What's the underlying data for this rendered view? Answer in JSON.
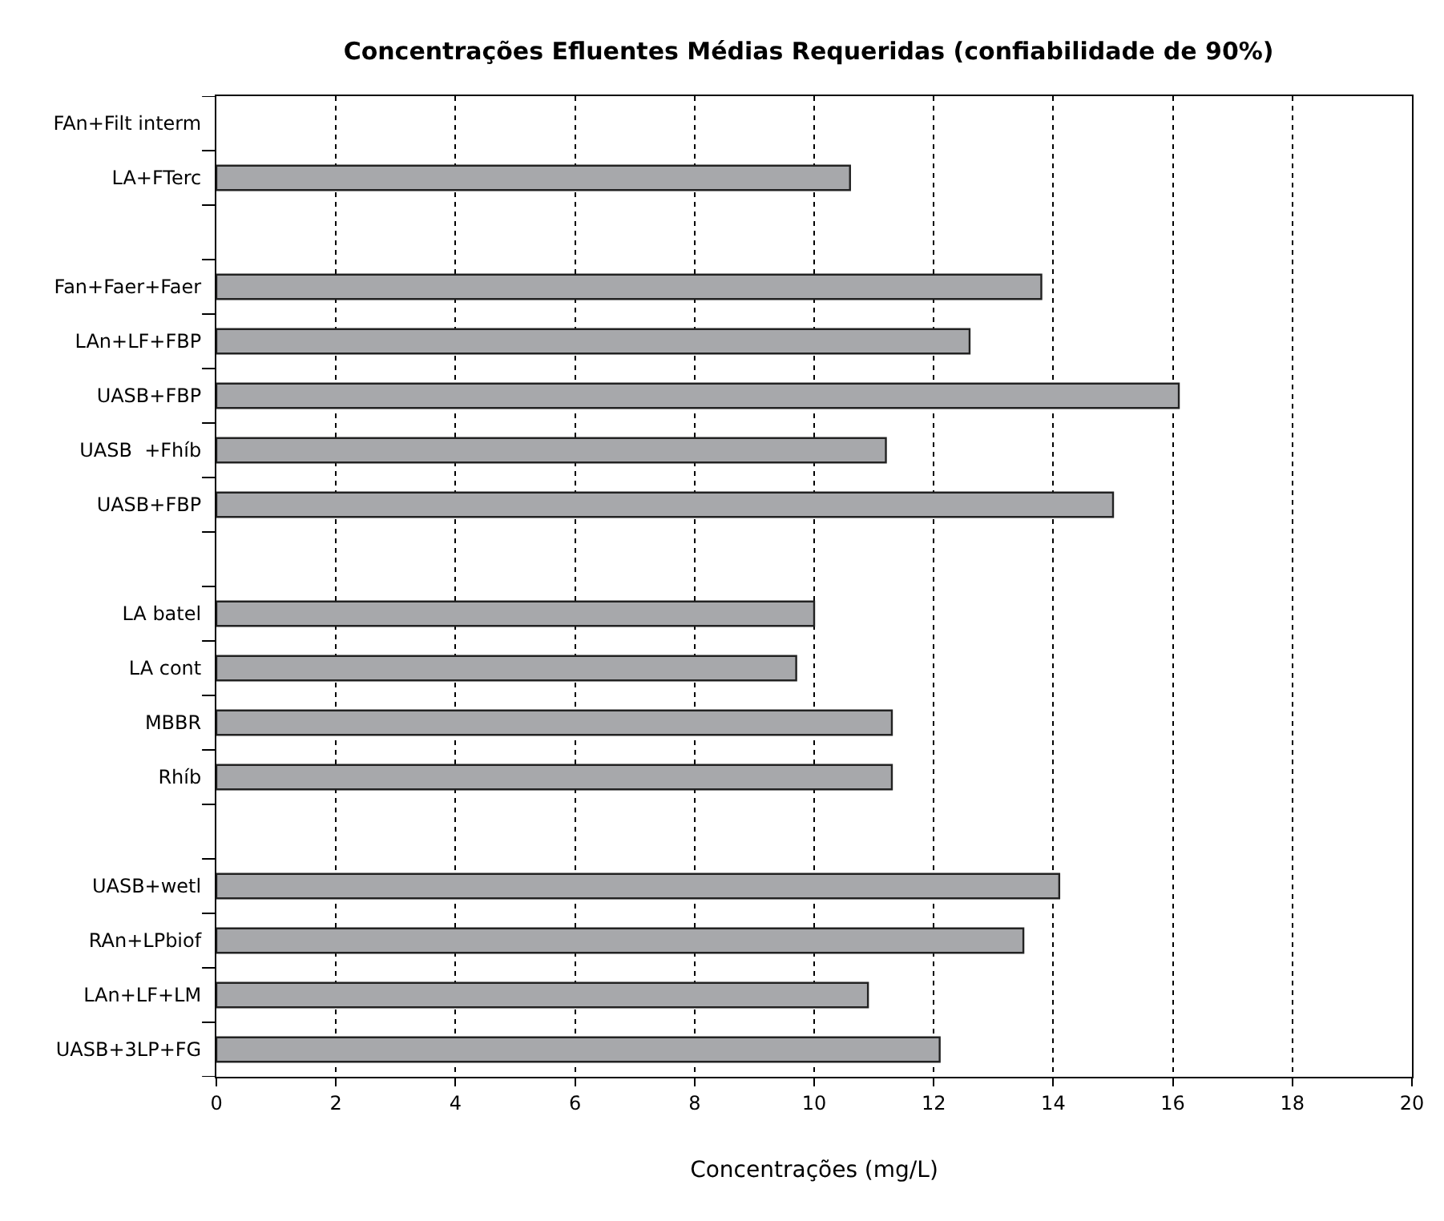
{
  "chart_data": {
    "type": "bar",
    "orientation": "horizontal",
    "title": "Concentrações Efluentes Médias Requeridas (confiabilidade de 90%)",
    "xlabel": "Concentrações (mg/L)",
    "categories": [
      "FAn+Filt interm",
      "LA+FTerc",
      null,
      "Fan+Faer+Faer",
      "LAn+LF+FBP",
      "UASB+FBP",
      "UASB  +Fhíb",
      "UASB+FBP",
      null,
      "LA batel",
      "LA cont",
      "MBBR",
      "Rhíb",
      null,
      "UASB+wetl",
      "RAn+LPbiof",
      "LAn+LF+LM",
      "UASB+3LP+FG"
    ],
    "values": [
      null,
      10.6,
      null,
      13.8,
      12.6,
      16.1,
      11.2,
      15.0,
      null,
      10.0,
      9.7,
      11.3,
      11.3,
      null,
      14.1,
      13.5,
      10.9,
      12.1
    ],
    "color": "#a7a8ab",
    "xlim": [
      0,
      20
    ],
    "xticks": [
      0,
      2,
      4,
      6,
      8,
      10,
      12,
      14,
      16,
      18,
      20
    ],
    "grid": "x"
  }
}
